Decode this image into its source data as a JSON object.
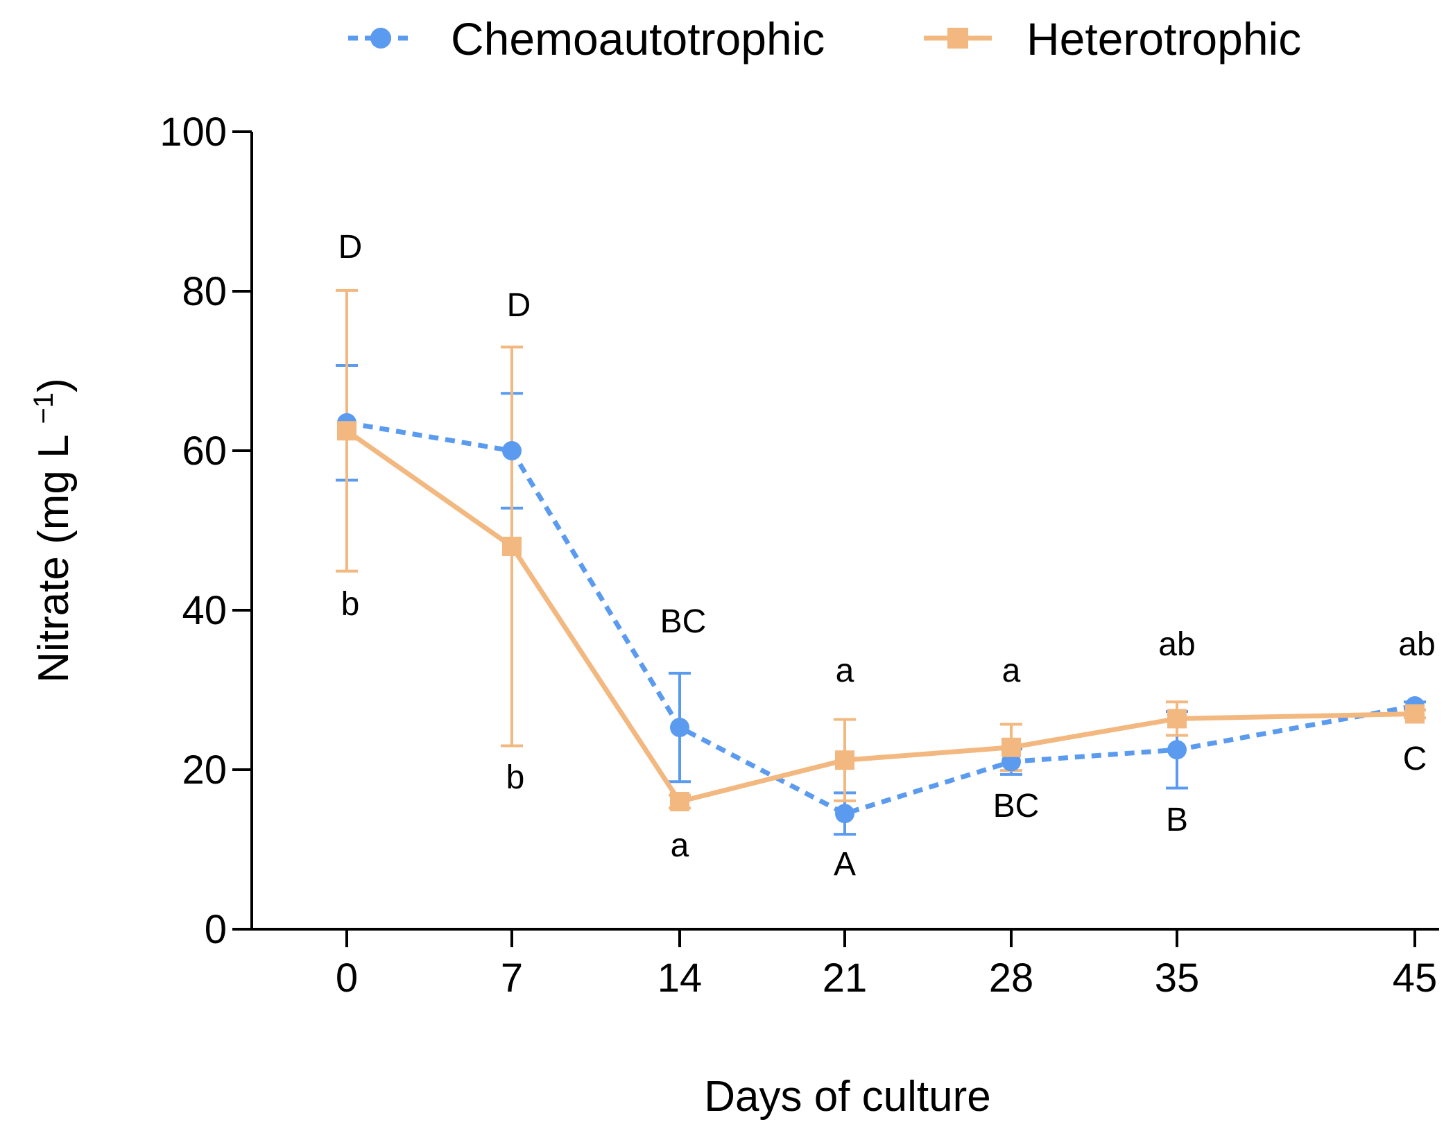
{
  "chart_data": {
    "type": "line",
    "title": "",
    "xlabel": "Days of culture",
    "ylabel": "Nitrate (mg L",
    "ylabel_sup": "−1",
    "ylabel_close": ")",
    "x": [
      0,
      7,
      14,
      21,
      28,
      35,
      45
    ],
    "xticks": [
      "0",
      "7",
      "14",
      "21",
      "28",
      "35",
      "45"
    ],
    "yticks": [
      "0",
      "20",
      "40",
      "60",
      "80",
      "100"
    ],
    "ylim": [
      0,
      100
    ],
    "legend_position": "top",
    "series": [
      {
        "name": "Chemoautotrophic",
        "color": "#5b9bef",
        "style": "dashed",
        "marker": "circle",
        "values": [
          63.5,
          60,
          25.3,
          14.5,
          21,
          22.5,
          28
        ],
        "errors": [
          7.2,
          7.2,
          6.8,
          2.6,
          1.6,
          4.8,
          0.5
        ],
        "letters": [
          "",
          "",
          "BC",
          "A",
          "BC",
          "B",
          "C"
        ],
        "letter_pos": [
          "",
          "",
          "above",
          "below",
          "below",
          "below",
          "below"
        ]
      },
      {
        "name": "Heterotrophic",
        "color": "#f2b880",
        "style": "solid",
        "marker": "square",
        "values": [
          62.5,
          48,
          16,
          21.2,
          22.8,
          26.4,
          27
        ],
        "errors": [
          17.6,
          25,
          0.8,
          5.1,
          2.9,
          2.1,
          0.5
        ],
        "letters": [
          "b",
          "b",
          "a",
          "a",
          "a",
          "ab",
          "ab"
        ],
        "letter_pos": [
          "below",
          "below",
          "below",
          "above",
          "above",
          "above",
          "above"
        ]
      }
    ],
    "top_letters": [
      "D",
      "D",
      "",
      "",
      "",
      "",
      ""
    ]
  }
}
